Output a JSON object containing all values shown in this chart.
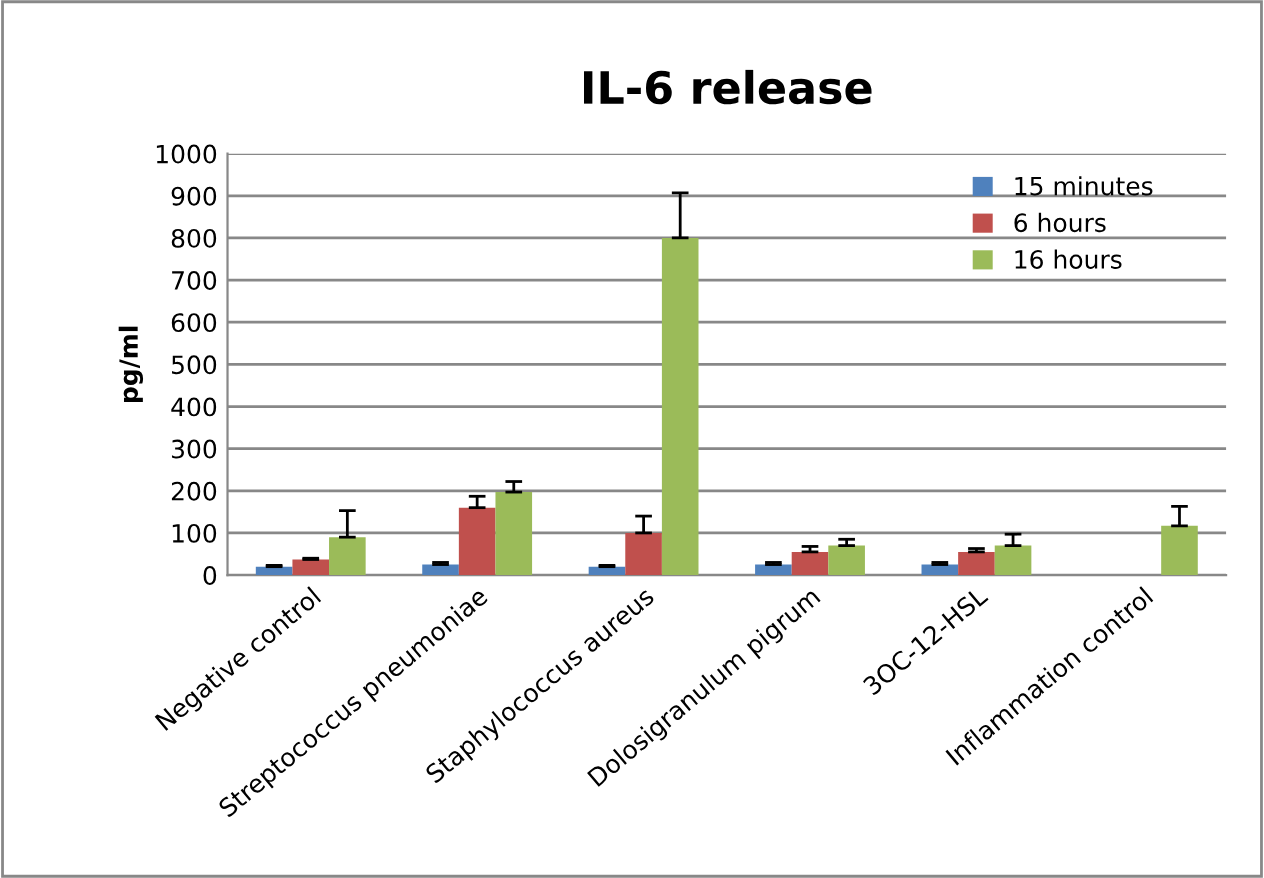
{
  "chart_data": {
    "type": "bar",
    "title": "IL-6 release",
    "ylabel": "pg/ml",
    "categories": [
      "Negative control",
      "Streptococcus pneumoniae",
      "Staphylococcus aureus",
      "Dolosigranulum pigrum",
      "3OC-12-HSL",
      "Inflammation control"
    ],
    "series": [
      {
        "name": "15 minutes",
        "color": "#4f81bd",
        "values": [
          20,
          25,
          20,
          25,
          25,
          null
        ],
        "errors": [
          [
            20,
            23
          ],
          [
            25,
            30
          ],
          [
            20,
            23
          ],
          [
            25,
            30
          ],
          [
            25,
            30
          ],
          null
        ]
      },
      {
        "name": "6 hours",
        "color": "#c0504d",
        "values": [
          37,
          160,
          100,
          55,
          55,
          null
        ],
        "errors": [
          [
            37,
            40
          ],
          [
            160,
            187
          ],
          [
            100,
            140
          ],
          [
            55,
            68
          ],
          [
            55,
            63
          ],
          null
        ]
      },
      {
        "name": "16 hours",
        "color": "#9bbb59",
        "values": [
          90,
          197,
          800,
          70,
          70,
          117
        ],
        "errors": [
          [
            90,
            153
          ],
          [
            197,
            222
          ],
          [
            800,
            907
          ],
          [
            70,
            85
          ],
          [
            70,
            97
          ],
          [
            117,
            163
          ]
        ]
      }
    ],
    "ylim": [
      0,
      1000
    ],
    "yticks": [
      0,
      100,
      200,
      300,
      400,
      500,
      600,
      700,
      800,
      900,
      1000
    ],
    "grid": "y",
    "legend": "top right"
  }
}
